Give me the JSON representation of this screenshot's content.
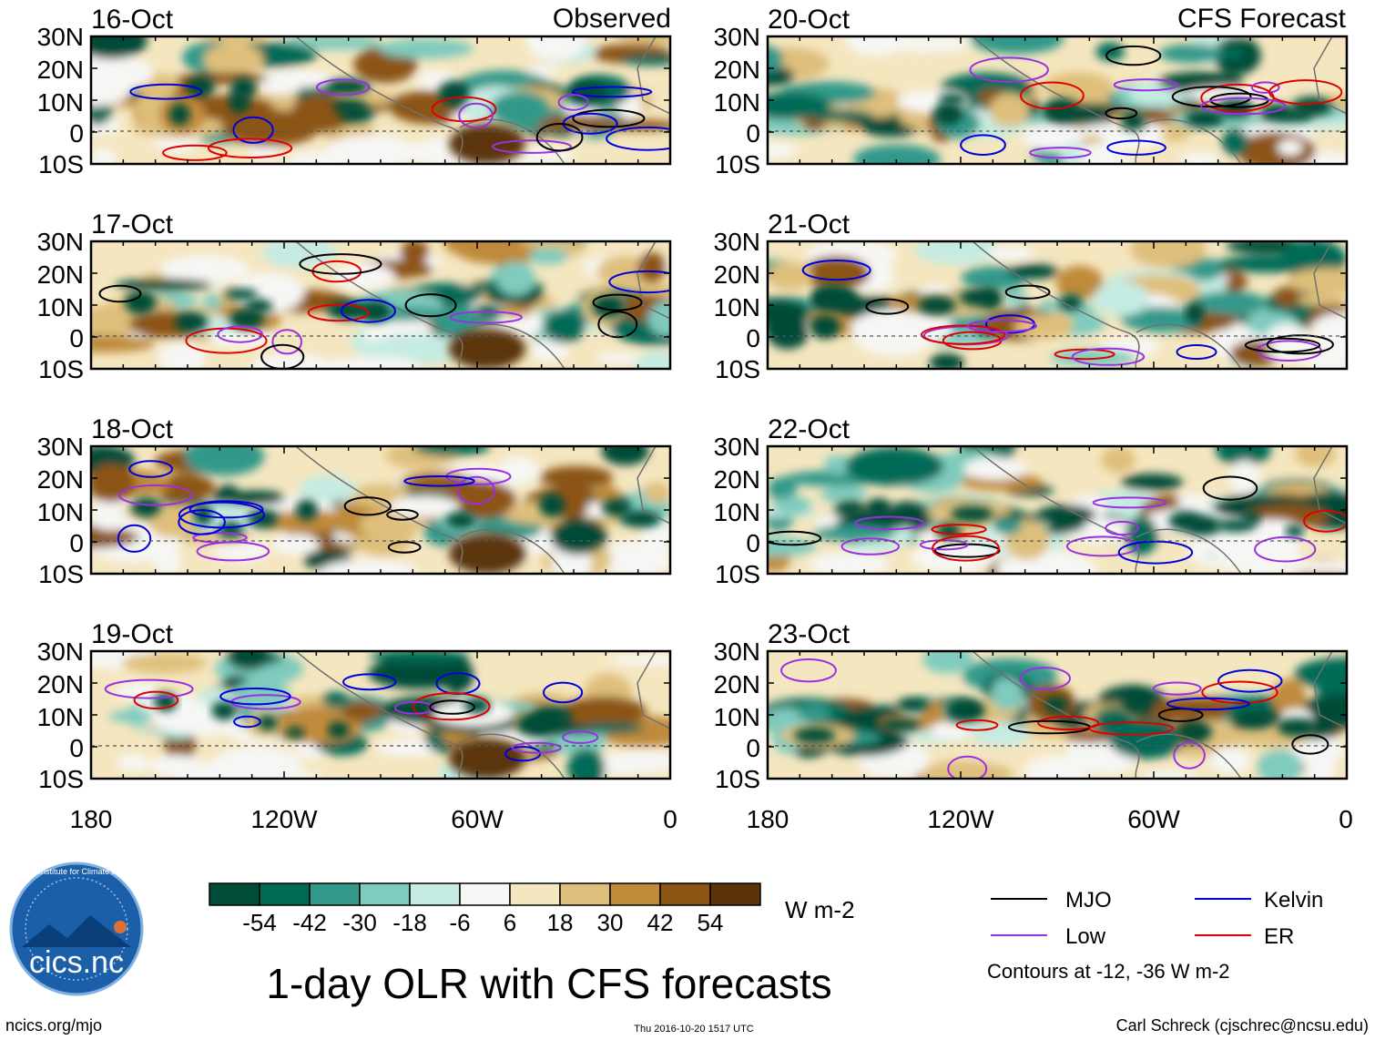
{
  "header": {
    "left_column_label": "Observed",
    "right_column_label": "CFS Forecast"
  },
  "panels": [
    {
      "date": "16-Oct",
      "source": "observed"
    },
    {
      "date": "17-Oct",
      "source": "observed"
    },
    {
      "date": "18-Oct",
      "source": "observed"
    },
    {
      "date": "19-Oct",
      "source": "observed"
    },
    {
      "date": "20-Oct",
      "source": "forecast"
    },
    {
      "date": "21-Oct",
      "source": "forecast"
    },
    {
      "date": "22-Oct",
      "source": "forecast"
    },
    {
      "date": "23-Oct",
      "source": "forecast"
    }
  ],
  "axes": {
    "lat_labels": [
      "30N",
      "20N",
      "10N",
      "0",
      "10S"
    ],
    "lon_labels": [
      "180",
      "120W",
      "60W",
      "0"
    ]
  },
  "colorbar": {
    "colors": [
      "#004c38",
      "#006a56",
      "#33998a",
      "#7fcbbd",
      "#c6ebe2",
      "#f6f6f4",
      "#f4e6bf",
      "#dfbf7c",
      "#bf8a3a",
      "#8c5514",
      "#5c3408"
    ],
    "tick_labels": [
      "-54",
      "-42",
      "-30",
      "-18",
      "-6",
      "6",
      "18",
      "30",
      "42",
      "54"
    ],
    "units": "W m-2"
  },
  "legend": {
    "items": [
      {
        "label": "MJO",
        "color": "#000000"
      },
      {
        "label": "Kelvin",
        "color": "#0000dd"
      },
      {
        "label": "Low",
        "color": "#9b30e0"
      },
      {
        "label": "ER",
        "color": "#e00000"
      }
    ],
    "contour_note": "Contours at -12, -36 W m-2"
  },
  "title": "1-day OLR with CFS forecasts",
  "footer": {
    "website": "ncics.org/mjo",
    "timestamp": "Thu 2016-10-20 1517 UTC",
    "author": "Carl Schreck (cjschrec@ncsu.edu)"
  },
  "logo": {
    "text": "cics.nc",
    "ring_text": "Cooperative Institute for Climate and Satellites"
  }
}
